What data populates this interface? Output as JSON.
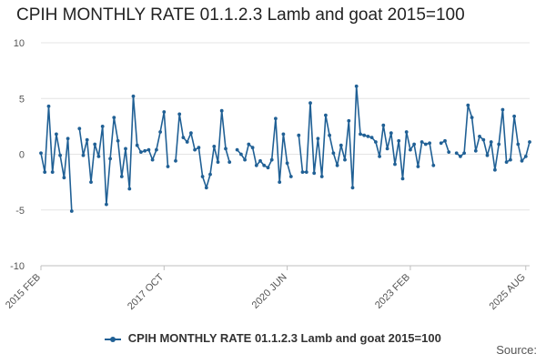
{
  "chart_data": {
    "type": "line",
    "title": "CPIH MONTHLY RATE 01.1.2.3 Lamb and goat 2015=100",
    "x_start": "2015 FEB",
    "x_end": "2025 AUG",
    "x_ticks": [
      "2015 FEB",
      "2017 OCT",
      "2020 JUN",
      "2023 FEB",
      "2025 AUG"
    ],
    "y_ticks": [
      10,
      5,
      0,
      -5,
      -10
    ],
    "ylim": [
      -10,
      10
    ],
    "grid": "horizontal",
    "legend_position": "bottom",
    "series": [
      {
        "name": "CPIH MONTHLY RATE 01.1.2.3 Lamb and goat 2015=100",
        "color": "#206095",
        "values": [
          0.1,
          -1.6,
          4.3,
          -1.6,
          1.8,
          -0.1,
          -2.1,
          1.4,
          -5.1,
          null,
          2.3,
          -0.1,
          1.3,
          -2.5,
          0.9,
          -0.2,
          2.5,
          -4.5,
          -0.4,
          3.3,
          1.2,
          -2.0,
          0.5,
          -3.1,
          5.2,
          0.8,
          0.2,
          0.3,
          0.4,
          -0.5,
          0.4,
          2.0,
          3.8,
          -1.1,
          null,
          -0.6,
          3.6,
          1.5,
          1.1,
          1.9,
          0.4,
          0.6,
          -2.0,
          -3.0,
          -1.8,
          0.7,
          -0.7,
          3.9,
          0.5,
          -0.7,
          null,
          0.4,
          0.0,
          -0.5,
          0.9,
          0.6,
          -1.0,
          -0.6,
          -1.0,
          -1.2,
          -0.5,
          3.2,
          -2.5,
          1.8,
          -0.8,
          -2.0,
          null,
          1.7,
          -1.6,
          -1.6,
          4.6,
          -1.7,
          1.4,
          -2.0,
          3.5,
          1.7,
          0.1,
          -1.0,
          0.8,
          -0.5,
          3.0,
          -3.0,
          6.1,
          1.8,
          1.7,
          1.6,
          1.5,
          1.1,
          -0.2,
          2.6,
          0.5,
          1.9,
          -0.9,
          1.2,
          -2.2,
          2.0,
          0.4,
          0.9,
          -1.1,
          1.1,
          0.9,
          1.0,
          -1.0,
          null,
          1.0,
          1.2,
          0.2,
          null,
          0.1,
          -0.2,
          0.1,
          4.4,
          3.3,
          0.3,
          1.6,
          1.3,
          -0.1,
          1.1,
          -1.4,
          0.9,
          4.0,
          -0.7,
          -0.5,
          3.4,
          0.9,
          -0.6,
          -0.2,
          1.1
        ]
      }
    ]
  },
  "legend": {
    "label": "CPIH MONTHLY RATE 01.1.2.3 Lamb and goat 2015=100"
  },
  "source_label": "Source:"
}
